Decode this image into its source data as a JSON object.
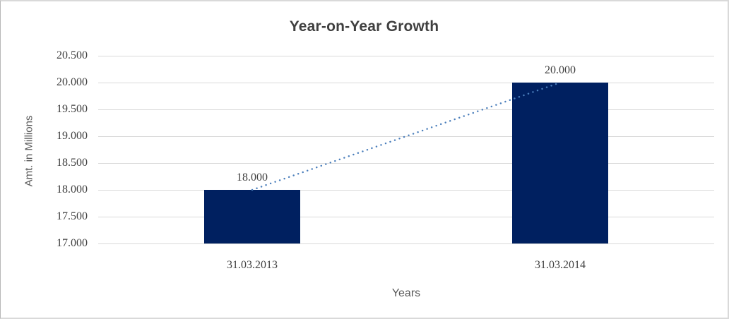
{
  "chart_data": {
    "type": "bar",
    "title": "Year-on-Year Growth",
    "xlabel": "Years",
    "ylabel": "Amt. in Millions",
    "categories": [
      "31.03.2013",
      "31.03.2014"
    ],
    "values": [
      18.0,
      20.0
    ],
    "data_labels": [
      "18.000",
      "20.000"
    ],
    "ylim": [
      17.0,
      20.5
    ],
    "ytick_step": 0.5,
    "ytick_labels": [
      "17.000",
      "17.500",
      "18.000",
      "18.500",
      "19.000",
      "19.500",
      "20.000",
      "20.500"
    ],
    "grid": true,
    "legend_position": "none",
    "bar_color": "#002060",
    "trendline": {
      "style": "dotted",
      "color": "#4a7ebb"
    },
    "gridline_color": "#d9d9d9",
    "title_color": "#3f3f3f",
    "tick_label_color": "#404040",
    "axis_title_color": "#595959"
  }
}
